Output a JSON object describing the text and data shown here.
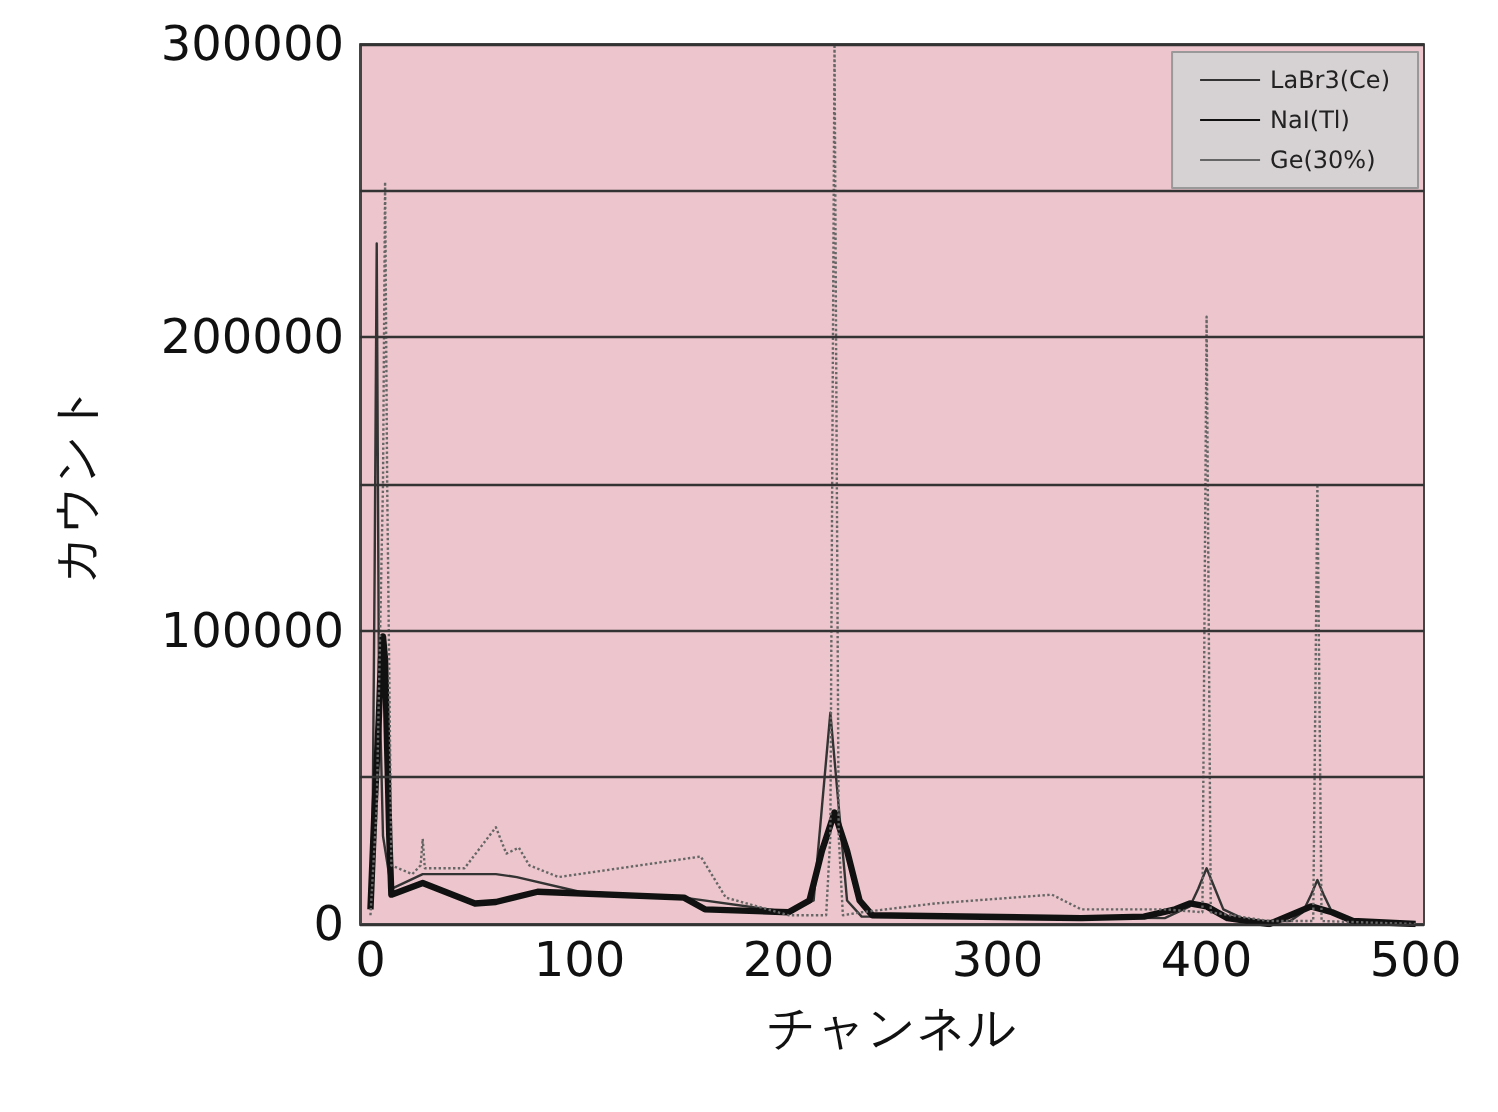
{
  "chart_data": {
    "type": "line",
    "xlabel": "チャンネル",
    "ylabel": "カウント",
    "xlim": [
      -5,
      504
    ],
    "xticks": [
      0,
      100,
      200,
      300,
      400,
      500
    ],
    "ylim": [
      0,
      300000
    ],
    "yticks": [
      0,
      {
        "value": 50000,
        "label": null
      },
      100000,
      {
        "value": 150000,
        "label": null
      },
      200000,
      {
        "value": 250000,
        "label": null
      },
      300000
    ],
    "grid": "y",
    "legend": "top right",
    "marker": "none",
    "series": [
      {
        "name": "LaBr3(Ce)",
        "color": "#333333",
        "line_style": "solid",
        "x": [
          0,
          1,
          2,
          3,
          4,
          6,
          10,
          25,
          40,
          60,
          70,
          100,
          150,
          200,
          212,
          216,
          220,
          224,
          228,
          235,
          300,
          380,
          392,
          396,
          400,
          404,
          408,
          420,
          440,
          446,
          450,
          453,
          456,
          460,
          470,
          500
        ],
        "values": [
          5000,
          30000,
          120000,
          232000,
          90000,
          30000,
          12000,
          17000,
          17000,
          17000,
          16000,
          11000,
          9000,
          4000,
          8000,
          40000,
          72000,
          40000,
          8000,
          2500,
          2500,
          2000,
          6000,
          12000,
          19000,
          12000,
          5000,
          1000,
          1000,
          4000,
          10000,
          15000,
          10000,
          4000,
          500,
          0
        ]
      },
      {
        "name": "NaI(Tl)",
        "color": "#111111",
        "line_style": "solid",
        "x": [
          0,
          2,
          4,
          5,
          6,
          7,
          8,
          9,
          10,
          25,
          50,
          60,
          80,
          150,
          160,
          200,
          210,
          216,
          222,
          228,
          234,
          240,
          340,
          370,
          385,
          392,
          400,
          410,
          430,
          440,
          450,
          460,
          470,
          500
        ],
        "values": [
          5000,
          40000,
          70000,
          90000,
          98000,
          90000,
          60000,
          30000,
          10000,
          14000,
          7000,
          7500,
          11000,
          9000,
          5000,
          4000,
          8000,
          25000,
          38000,
          25000,
          8000,
          3000,
          2000,
          2500,
          5000,
          7000,
          6000,
          2000,
          0,
          3000,
          6000,
          4000,
          1000,
          0
        ]
      },
      {
        "name": "Ge(30%)",
        "color": "#666666",
        "line_style": "dotted",
        "x": [
          0,
          3,
          6,
          7,
          8,
          10,
          20,
          24,
          25,
          26,
          45,
          60,
          65,
          71,
          76,
          90,
          158,
          170,
          200,
          218,
          220,
          222,
          224,
          226,
          235,
          270,
          326,
          340,
          380,
          398,
          400,
          402,
          430,
          451,
          453,
          455,
          500
        ],
        "values": [
          3000,
          40000,
          150000,
          253000,
          150000,
          20000,
          17000,
          20000,
          29000,
          19000,
          19000,
          33000,
          24000,
          26000,
          20000,
          16000,
          23000,
          9000,
          3000,
          3000,
          30000,
          300000,
          30000,
          3000,
          4000,
          7000,
          10000,
          5000,
          5000,
          4000,
          207000,
          4000,
          1000,
          1000,
          150000,
          1000,
          0
        ]
      }
    ]
  }
}
